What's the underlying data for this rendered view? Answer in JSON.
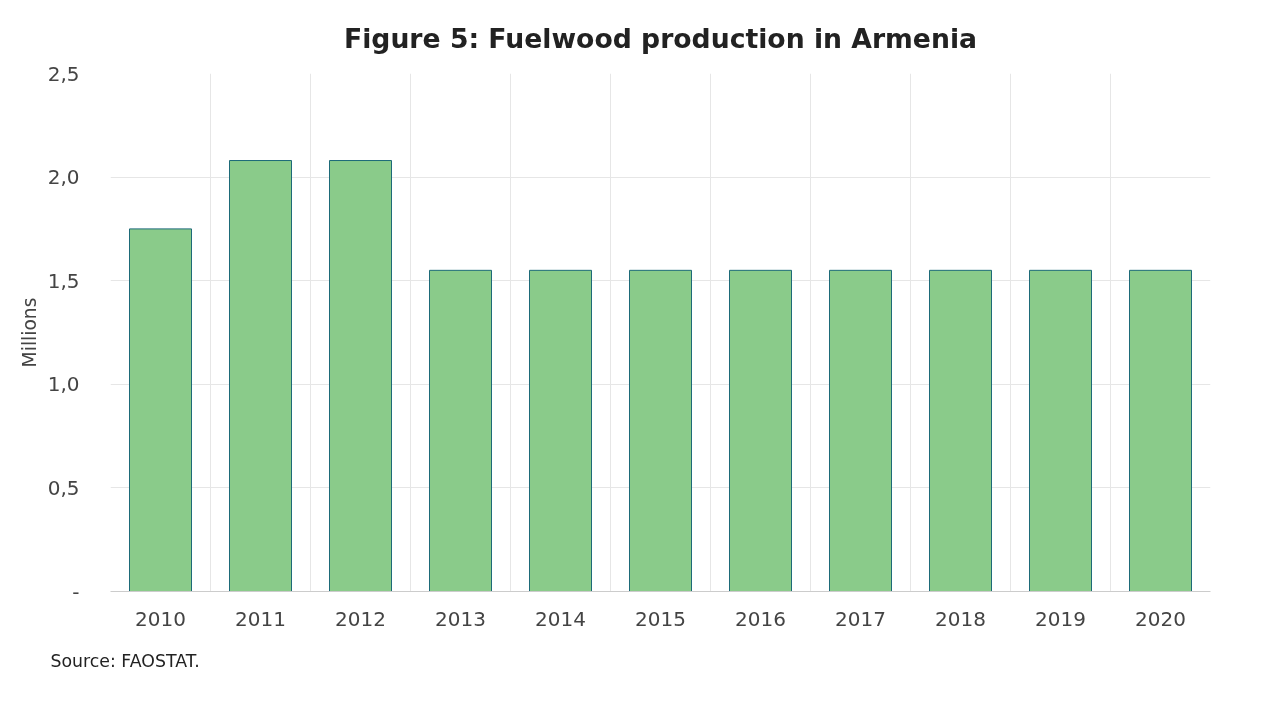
{
  "chart_data": {
    "type": "bar",
    "title": "Figure 5: Fuelwood production in Armenia",
    "ylabel": "Millions",
    "categories": [
      "2010",
      "2011",
      "2012",
      "2013",
      "2014",
      "2015",
      "2016",
      "2017",
      "2018",
      "2019",
      "2020"
    ],
    "values": [
      1.75,
      2.08,
      2.08,
      1.55,
      1.55,
      1.55,
      1.55,
      1.55,
      1.55,
      1.55,
      1.55
    ],
    "color": "#8acb8a",
    "ylim": [
      0,
      2.5
    ],
    "yticks": [
      {
        "value": 0,
        "label": "-"
      },
      {
        "value": 0.5,
        "label": "0,5"
      },
      {
        "value": 1.0,
        "label": "1,0"
      },
      {
        "value": 1.5,
        "label": "1,5"
      },
      {
        "value": 2.0,
        "label": "2,0"
      },
      {
        "value": 2.5,
        "label": "2,5"
      }
    ],
    "grid": true,
    "annotations": [
      "Source: FAOSTAT."
    ]
  }
}
